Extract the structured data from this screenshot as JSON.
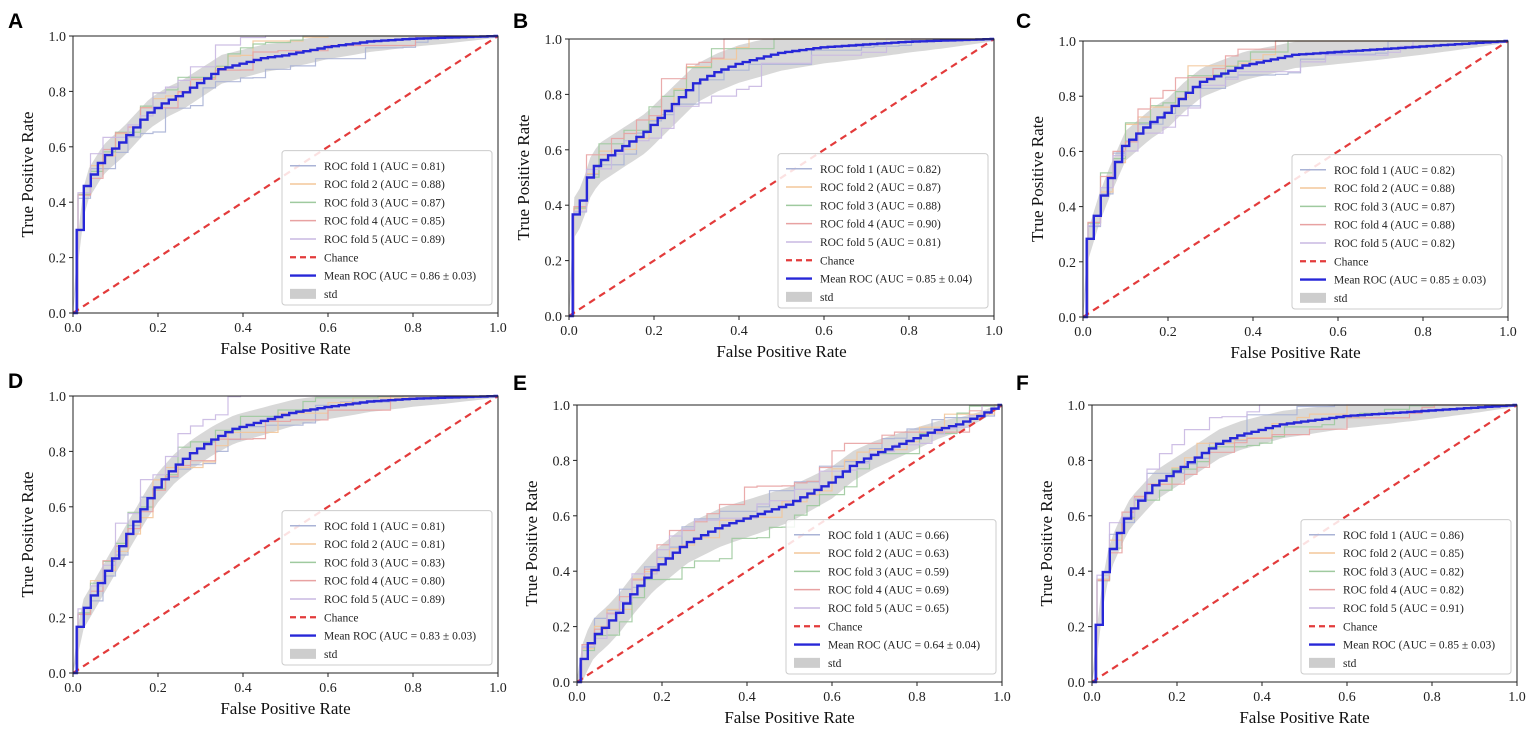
{
  "figure": {
    "colors": {
      "fold_colors": [
        "#aab3d6",
        "#f3c79a",
        "#9fca9f",
        "#e8a2a2",
        "#c9b8e2"
      ],
      "chance": "#e33b3b",
      "mean": "#2727d8",
      "std_fill": "#b8b8b8"
    }
  },
  "chart_data": [
    {
      "panel": "A",
      "type": "line",
      "title": "",
      "xlabel": "False Positive Rate",
      "ylabel": "True Positive Rate",
      "xlim": [
        0,
        1
      ],
      "ylim": [
        0,
        1
      ],
      "xticks": [
        "0.0",
        "0.2",
        "0.4",
        "0.6",
        "0.8",
        "1.0"
      ],
      "yticks": [
        "0.0",
        "0.2",
        "0.4",
        "0.6",
        "0.8",
        "1.0"
      ],
      "legend_position": "lower-right",
      "folds": [
        {
          "label": "ROC fold 1 (AUC = 0.81)",
          "auc": 0.81
        },
        {
          "label": "ROC fold 2 (AUC = 0.88)",
          "auc": 0.88
        },
        {
          "label": "ROC fold 3 (AUC = 0.87)",
          "auc": 0.87
        },
        {
          "label": "ROC fold 4 (AUC = 0.85)",
          "auc": 0.85
        },
        {
          "label": "ROC fold 5 (AUC = 0.89)",
          "auc": 0.89
        }
      ],
      "chance_label": "Chance",
      "mean_label": "Mean ROC (AUC = 0.86 ± 0.03)",
      "mean_auc": 0.86,
      "std_auc": 0.03,
      "std_label": "std",
      "mean_curve": {
        "x": [
          0,
          0.01,
          0.02,
          0.03,
          0.05,
          0.07,
          0.09,
          0.12,
          0.15,
          0.18,
          0.22,
          0.26,
          0.3,
          0.35,
          0.4,
          0.45,
          0.5,
          0.6,
          0.7,
          0.8,
          0.9,
          1.0
        ],
        "y": [
          0,
          0.2,
          0.35,
          0.45,
          0.5,
          0.55,
          0.58,
          0.62,
          0.67,
          0.72,
          0.76,
          0.79,
          0.83,
          0.88,
          0.9,
          0.92,
          0.93,
          0.96,
          0.98,
          0.99,
          0.995,
          1.0
        ]
      }
    },
    {
      "panel": "B",
      "type": "line",
      "title": "",
      "xlabel": "False Positive Rate",
      "ylabel": "True Positive Rate",
      "xlim": [
        0,
        1
      ],
      "ylim": [
        0,
        1
      ],
      "xticks": [
        "0.0",
        "0.2",
        "0.4",
        "0.6",
        "0.8",
        "1.0"
      ],
      "yticks": [
        "0.0",
        "0.2",
        "0.4",
        "0.6",
        "0.8",
        "1.0"
      ],
      "legend_position": "lower-right",
      "folds": [
        {
          "label": "ROC fold 1 (AUC = 0.82)",
          "auc": 0.82
        },
        {
          "label": "ROC fold 2 (AUC = 0.87)",
          "auc": 0.87
        },
        {
          "label": "ROC fold 3 (AUC = 0.88)",
          "auc": 0.88
        },
        {
          "label": "ROC fold 4 (AUC = 0.90)",
          "auc": 0.9
        },
        {
          "label": "ROC fold 5 (AUC = 0.81)",
          "auc": 0.81
        }
      ],
      "chance_label": "Chance",
      "mean_label": "Mean ROC (AUC = 0.85 ± 0.04)",
      "mean_auc": 0.85,
      "std_auc": 0.04,
      "std_label": "std",
      "mean_curve": {
        "x": [
          0,
          0.01,
          0.03,
          0.05,
          0.07,
          0.1,
          0.14,
          0.18,
          0.22,
          0.26,
          0.3,
          0.35,
          0.4,
          0.45,
          0.5,
          0.6,
          0.7,
          0.8,
          0.9,
          1.0
        ],
        "y": [
          0,
          0.35,
          0.4,
          0.5,
          0.55,
          0.58,
          0.62,
          0.66,
          0.72,
          0.78,
          0.84,
          0.88,
          0.91,
          0.93,
          0.95,
          0.97,
          0.98,
          0.99,
          0.995,
          1.0
        ]
      }
    },
    {
      "panel": "C",
      "type": "line",
      "title": "",
      "xlabel": "False Positive Rate",
      "ylabel": "True Positive Rate",
      "xlim": [
        0,
        1
      ],
      "ylim": [
        0,
        1
      ],
      "xticks": [
        "0.0",
        "0.2",
        "0.4",
        "0.6",
        "0.8",
        "1.0"
      ],
      "yticks": [
        "0.0",
        "0.2",
        "0.4",
        "0.6",
        "0.8",
        "1.0"
      ],
      "legend_position": "lower-right",
      "folds": [
        {
          "label": "ROC fold 1 (AUC = 0.82)",
          "auc": 0.82
        },
        {
          "label": "ROC fold 2 (AUC = 0.88)",
          "auc": 0.88
        },
        {
          "label": "ROC fold 3 (AUC = 0.87)",
          "auc": 0.87
        },
        {
          "label": "ROC fold 4 (AUC = 0.88)",
          "auc": 0.88
        },
        {
          "label": "ROC fold 5 (AUC = 0.82)",
          "auc": 0.82
        }
      ],
      "chance_label": "Chance",
      "mean_label": "Mean ROC (AUC = 0.85 ± 0.03)",
      "mean_auc": 0.85,
      "std_auc": 0.03,
      "std_label": "std",
      "mean_curve": {
        "x": [
          0,
          0.01,
          0.02,
          0.04,
          0.06,
          0.08,
          0.1,
          0.13,
          0.16,
          0.2,
          0.24,
          0.28,
          0.33,
          0.38,
          0.44,
          0.5,
          0.6,
          0.7,
          0.8,
          0.9,
          1.0
        ],
        "y": [
          0,
          0.25,
          0.3,
          0.4,
          0.48,
          0.55,
          0.62,
          0.66,
          0.7,
          0.74,
          0.8,
          0.85,
          0.88,
          0.91,
          0.93,
          0.95,
          0.96,
          0.97,
          0.98,
          0.99,
          1.0
        ]
      }
    },
    {
      "panel": "D",
      "type": "line",
      "title": "",
      "xlabel": "False Positive Rate",
      "ylabel": "True Positive Rate",
      "xlim": [
        0,
        1
      ],
      "ylim": [
        0,
        1
      ],
      "xticks": [
        "0.0",
        "0.2",
        "0.4",
        "0.6",
        "0.8",
        "1.0"
      ],
      "yticks": [
        "0.0",
        "0.2",
        "0.4",
        "0.6",
        "0.8",
        "1.0"
      ],
      "legend_position": "lower-right",
      "folds": [
        {
          "label": "ROC fold 1 (AUC = 0.81)",
          "auc": 0.81
        },
        {
          "label": "ROC fold 2 (AUC = 0.81)",
          "auc": 0.81
        },
        {
          "label": "ROC fold 3 (AUC = 0.83)",
          "auc": 0.83
        },
        {
          "label": "ROC fold 4 (AUC = 0.80)",
          "auc": 0.8
        },
        {
          "label": "ROC fold 5 (AUC = 0.89)",
          "auc": 0.89
        }
      ],
      "chance_label": "Chance",
      "mean_label": "Mean ROC (AUC = 0.83 ± 0.03)",
      "mean_auc": 0.83,
      "std_auc": 0.03,
      "std_label": "std",
      "mean_curve": {
        "x": [
          0,
          0.02,
          0.05,
          0.08,
          0.11,
          0.14,
          0.17,
          0.2,
          0.24,
          0.28,
          0.33,
          0.38,
          0.45,
          0.52,
          0.6,
          0.7,
          0.8,
          0.9,
          1.0
        ],
        "y": [
          0,
          0.2,
          0.28,
          0.36,
          0.44,
          0.52,
          0.6,
          0.67,
          0.74,
          0.79,
          0.84,
          0.88,
          0.91,
          0.94,
          0.96,
          0.98,
          0.99,
          0.995,
          1.0
        ]
      }
    },
    {
      "panel": "E",
      "type": "line",
      "title": "",
      "xlabel": "False Positive Rate",
      "ylabel": "True Positive Rate",
      "xlim": [
        0,
        1
      ],
      "ylim": [
        0,
        1
      ],
      "xticks": [
        "0.0",
        "0.2",
        "0.4",
        "0.6",
        "0.8",
        "1.0"
      ],
      "yticks": [
        "0.0",
        "0.2",
        "0.4",
        "0.6",
        "0.8",
        "1.0"
      ],
      "legend_position": "lower-right",
      "folds": [
        {
          "label": "ROC fold 1 (AUC = 0.66)",
          "auc": 0.66
        },
        {
          "label": "ROC fold 2 (AUC = 0.63)",
          "auc": 0.63
        },
        {
          "label": "ROC fold 3 (AUC = 0.59)",
          "auc": 0.59
        },
        {
          "label": "ROC fold 4 (AUC = 0.69)",
          "auc": 0.69
        },
        {
          "label": "ROC fold 5 (AUC = 0.65)",
          "auc": 0.65
        }
      ],
      "chance_label": "Chance",
      "mean_label": "Mean ROC (AUC = 0.64 ± 0.04)",
      "mean_auc": 0.64,
      "std_auc": 0.04,
      "std_label": "std",
      "mean_curve": {
        "x": [
          0,
          0.02,
          0.04,
          0.07,
          0.1,
          0.14,
          0.18,
          0.22,
          0.26,
          0.3,
          0.34,
          0.38,
          0.42,
          0.46,
          0.5,
          0.55,
          0.6,
          0.65,
          0.7,
          0.75,
          0.8,
          0.85,
          0.9,
          0.95,
          1.0
        ],
        "y": [
          0,
          0.1,
          0.16,
          0.2,
          0.25,
          0.33,
          0.4,
          0.45,
          0.5,
          0.53,
          0.56,
          0.58,
          0.6,
          0.62,
          0.64,
          0.68,
          0.72,
          0.78,
          0.82,
          0.85,
          0.88,
          0.91,
          0.93,
          0.96,
          1.0
        ]
      }
    },
    {
      "panel": "F",
      "type": "line",
      "title": "",
      "xlabel": "False Positive Rate",
      "ylabel": "True Positive Rate",
      "xlim": [
        0,
        1
      ],
      "ylim": [
        0,
        1
      ],
      "xticks": [
        "0.0",
        "0.2",
        "0.4",
        "0.6",
        "0.8",
        "1.0"
      ],
      "yticks": [
        "0.0",
        "0.2",
        "0.4",
        "0.6",
        "0.8",
        "1.0"
      ],
      "legend_position": "lower-right",
      "folds": [
        {
          "label": "ROC fold 1 (AUC = 0.86)",
          "auc": 0.86
        },
        {
          "label": "ROC fold 2 (AUC = 0.85)",
          "auc": 0.85
        },
        {
          "label": "ROC fold 3 (AUC = 0.82)",
          "auc": 0.82
        },
        {
          "label": "ROC fold 4 (AUC = 0.82)",
          "auc": 0.82
        },
        {
          "label": "ROC fold 5 (AUC = 0.91)",
          "auc": 0.91
        }
      ],
      "chance_label": "Chance",
      "mean_label": "Mean ROC (AUC = 0.85 ± 0.03)",
      "mean_auc": 0.85,
      "std_auc": 0.03,
      "std_label": "std",
      "mean_curve": {
        "x": [
          0,
          0.01,
          0.02,
          0.03,
          0.05,
          0.07,
          0.09,
          0.12,
          0.15,
          0.18,
          0.22,
          0.26,
          0.3,
          0.35,
          0.4,
          0.45,
          0.5,
          0.6,
          0.7,
          0.8,
          0.9,
          1.0
        ],
        "y": [
          0,
          0.12,
          0.25,
          0.38,
          0.48,
          0.55,
          0.61,
          0.66,
          0.71,
          0.74,
          0.78,
          0.82,
          0.86,
          0.89,
          0.91,
          0.93,
          0.94,
          0.96,
          0.97,
          0.98,
          0.99,
          1.0
        ]
      }
    }
  ]
}
